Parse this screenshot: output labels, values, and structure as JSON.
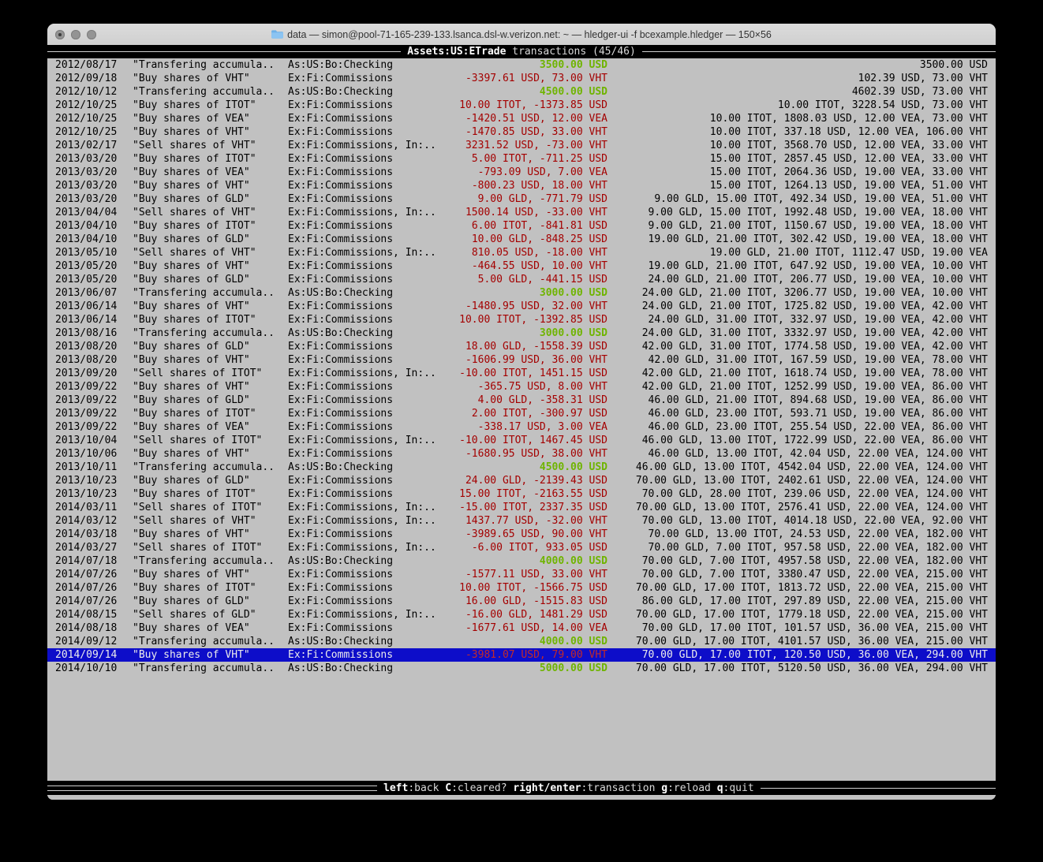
{
  "window": {
    "title": "data — simon@pool-71-165-239-133.lsanca.dsl-w.verizon.net: ~ — hledger-ui -f bcexample.hledger — 150×56",
    "traffic_lights": [
      "close",
      "minimize",
      "zoom"
    ]
  },
  "screen": {
    "title_account": "Assets:US:ETrade",
    "title_mode": "transactions (45/46)"
  },
  "footer": {
    "hints": [
      {
        "key": "left",
        "label": ":back"
      },
      {
        "key": "C",
        "label": ":cleared?"
      },
      {
        "key": "right/enter",
        "label": ":transaction"
      },
      {
        "key": "g",
        "label": ":reload"
      },
      {
        "key": "q",
        "label": ":quit"
      }
    ]
  },
  "colors": {
    "terminal_bg": "#c1c1c1",
    "deposit_green": "#6fb400",
    "trade_red": "#a40000",
    "selection_blue": "#0d0dc9"
  },
  "transactions": [
    {
      "date": "2012/08/17",
      "description": "\"Transfering accumula..",
      "account": "As:US:Bo:Checking",
      "change": "3500.00 USD",
      "change_type": "deposit",
      "balance": "3500.00 USD"
    },
    {
      "date": "2012/09/18",
      "description": "\"Buy shares of VHT\"",
      "account": "Ex:Fi:Commissions",
      "change": "-3397.61 USD, 73.00 VHT",
      "change_type": "trade",
      "balance": "102.39 USD, 73.00 VHT"
    },
    {
      "date": "2012/10/12",
      "description": "\"Transfering accumula..",
      "account": "As:US:Bo:Checking",
      "change": "4500.00 USD",
      "change_type": "deposit",
      "balance": "4602.39 USD, 73.00 VHT"
    },
    {
      "date": "2012/10/25",
      "description": "\"Buy shares of ITOT\"",
      "account": "Ex:Fi:Commissions",
      "change": "10.00 ITOT, -1373.85 USD",
      "change_type": "trade",
      "balance": "10.00 ITOT, 3228.54 USD, 73.00 VHT"
    },
    {
      "date": "2012/10/25",
      "description": "\"Buy shares of VEA\"",
      "account": "Ex:Fi:Commissions",
      "change": "-1420.51 USD, 12.00 VEA",
      "change_type": "trade",
      "balance": "10.00 ITOT, 1808.03 USD, 12.00 VEA, 73.00 VHT"
    },
    {
      "date": "2012/10/25",
      "description": "\"Buy shares of VHT\"",
      "account": "Ex:Fi:Commissions",
      "change": "-1470.85 USD, 33.00 VHT",
      "change_type": "trade",
      "balance": "10.00 ITOT, 337.18 USD, 12.00 VEA, 106.00 VHT"
    },
    {
      "date": "2013/02/17",
      "description": "\"Sell shares of VHT\"",
      "account": "Ex:Fi:Commissions, In:..",
      "change": "3231.52 USD, -73.00 VHT",
      "change_type": "trade",
      "balance": "10.00 ITOT, 3568.70 USD, 12.00 VEA, 33.00 VHT"
    },
    {
      "date": "2013/03/20",
      "description": "\"Buy shares of ITOT\"",
      "account": "Ex:Fi:Commissions",
      "change": "5.00 ITOT, -711.25 USD",
      "change_type": "trade",
      "balance": "15.00 ITOT, 2857.45 USD, 12.00 VEA, 33.00 VHT"
    },
    {
      "date": "2013/03/20",
      "description": "\"Buy shares of VEA\"",
      "account": "Ex:Fi:Commissions",
      "change": "-793.09 USD, 7.00 VEA",
      "change_type": "trade",
      "balance": "15.00 ITOT, 2064.36 USD, 19.00 VEA, 33.00 VHT"
    },
    {
      "date": "2013/03/20",
      "description": "\"Buy shares of VHT\"",
      "account": "Ex:Fi:Commissions",
      "change": "-800.23 USD, 18.00 VHT",
      "change_type": "trade",
      "balance": "15.00 ITOT, 1264.13 USD, 19.00 VEA, 51.00 VHT"
    },
    {
      "date": "2013/03/20",
      "description": "\"Buy shares of GLD\"",
      "account": "Ex:Fi:Commissions",
      "change": "9.00 GLD, -771.79 USD",
      "change_type": "trade",
      "balance": "9.00 GLD, 15.00 ITOT, 492.34 USD, 19.00 VEA, 51.00 VHT"
    },
    {
      "date": "2013/04/04",
      "description": "\"Sell shares of VHT\"",
      "account": "Ex:Fi:Commissions, In:..",
      "change": "1500.14 USD, -33.00 VHT",
      "change_type": "trade",
      "balance": "9.00 GLD, 15.00 ITOT, 1992.48 USD, 19.00 VEA, 18.00 VHT"
    },
    {
      "date": "2013/04/10",
      "description": "\"Buy shares of ITOT\"",
      "account": "Ex:Fi:Commissions",
      "change": "6.00 ITOT, -841.81 USD",
      "change_type": "trade",
      "balance": "9.00 GLD, 21.00 ITOT, 1150.67 USD, 19.00 VEA, 18.00 VHT"
    },
    {
      "date": "2013/04/10",
      "description": "\"Buy shares of GLD\"",
      "account": "Ex:Fi:Commissions",
      "change": "10.00 GLD, -848.25 USD",
      "change_type": "trade",
      "balance": "19.00 GLD, 21.00 ITOT, 302.42 USD, 19.00 VEA, 18.00 VHT"
    },
    {
      "date": "2013/05/10",
      "description": "\"Sell shares of VHT\"",
      "account": "Ex:Fi:Commissions, In:..",
      "change": "810.05 USD, -18.00 VHT",
      "change_type": "trade",
      "balance": "19.00 GLD, 21.00 ITOT, 1112.47 USD, 19.00 VEA"
    },
    {
      "date": "2013/05/20",
      "description": "\"Buy shares of VHT\"",
      "account": "Ex:Fi:Commissions",
      "change": "-464.55 USD, 10.00 VHT",
      "change_type": "trade",
      "balance": "19.00 GLD, 21.00 ITOT, 647.92 USD, 19.00 VEA, 10.00 VHT"
    },
    {
      "date": "2013/05/20",
      "description": "\"Buy shares of GLD\"",
      "account": "Ex:Fi:Commissions",
      "change": "5.00 GLD, -441.15 USD",
      "change_type": "trade",
      "balance": "24.00 GLD, 21.00 ITOT, 206.77 USD, 19.00 VEA, 10.00 VHT"
    },
    {
      "date": "2013/06/07",
      "description": "\"Transfering accumula..",
      "account": "As:US:Bo:Checking",
      "change": "3000.00 USD",
      "change_type": "deposit",
      "balance": "24.00 GLD, 21.00 ITOT, 3206.77 USD, 19.00 VEA, 10.00 VHT"
    },
    {
      "date": "2013/06/14",
      "description": "\"Buy shares of VHT\"",
      "account": "Ex:Fi:Commissions",
      "change": "-1480.95 USD, 32.00 VHT",
      "change_type": "trade",
      "balance": "24.00 GLD, 21.00 ITOT, 1725.82 USD, 19.00 VEA, 42.00 VHT"
    },
    {
      "date": "2013/06/14",
      "description": "\"Buy shares of ITOT\"",
      "account": "Ex:Fi:Commissions",
      "change": "10.00 ITOT, -1392.85 USD",
      "change_type": "trade",
      "balance": "24.00 GLD, 31.00 ITOT, 332.97 USD, 19.00 VEA, 42.00 VHT"
    },
    {
      "date": "2013/08/16",
      "description": "\"Transfering accumula..",
      "account": "As:US:Bo:Checking",
      "change": "3000.00 USD",
      "change_type": "deposit",
      "balance": "24.00 GLD, 31.00 ITOT, 3332.97 USD, 19.00 VEA, 42.00 VHT"
    },
    {
      "date": "2013/08/20",
      "description": "\"Buy shares of GLD\"",
      "account": "Ex:Fi:Commissions",
      "change": "18.00 GLD, -1558.39 USD",
      "change_type": "trade",
      "balance": "42.00 GLD, 31.00 ITOT, 1774.58 USD, 19.00 VEA, 42.00 VHT"
    },
    {
      "date": "2013/08/20",
      "description": "\"Buy shares of VHT\"",
      "account": "Ex:Fi:Commissions",
      "change": "-1606.99 USD, 36.00 VHT",
      "change_type": "trade",
      "balance": "42.00 GLD, 31.00 ITOT, 167.59 USD, 19.00 VEA, 78.00 VHT"
    },
    {
      "date": "2013/09/20",
      "description": "\"Sell shares of ITOT\"",
      "account": "Ex:Fi:Commissions, In:..",
      "change": "-10.00 ITOT, 1451.15 USD",
      "change_type": "trade",
      "balance": "42.00 GLD, 21.00 ITOT, 1618.74 USD, 19.00 VEA, 78.00 VHT"
    },
    {
      "date": "2013/09/22",
      "description": "\"Buy shares of VHT\"",
      "account": "Ex:Fi:Commissions",
      "change": "-365.75 USD, 8.00 VHT",
      "change_type": "trade",
      "balance": "42.00 GLD, 21.00 ITOT, 1252.99 USD, 19.00 VEA, 86.00 VHT"
    },
    {
      "date": "2013/09/22",
      "description": "\"Buy shares of GLD\"",
      "account": "Ex:Fi:Commissions",
      "change": "4.00 GLD, -358.31 USD",
      "change_type": "trade",
      "balance": "46.00 GLD, 21.00 ITOT, 894.68 USD, 19.00 VEA, 86.00 VHT"
    },
    {
      "date": "2013/09/22",
      "description": "\"Buy shares of ITOT\"",
      "account": "Ex:Fi:Commissions",
      "change": "2.00 ITOT, -300.97 USD",
      "change_type": "trade",
      "balance": "46.00 GLD, 23.00 ITOT, 593.71 USD, 19.00 VEA, 86.00 VHT"
    },
    {
      "date": "2013/09/22",
      "description": "\"Buy shares of VEA\"",
      "account": "Ex:Fi:Commissions",
      "change": "-338.17 USD, 3.00 VEA",
      "change_type": "trade",
      "balance": "46.00 GLD, 23.00 ITOT, 255.54 USD, 22.00 VEA, 86.00 VHT"
    },
    {
      "date": "2013/10/04",
      "description": "\"Sell shares of ITOT\"",
      "account": "Ex:Fi:Commissions, In:..",
      "change": "-10.00 ITOT, 1467.45 USD",
      "change_type": "trade",
      "balance": "46.00 GLD, 13.00 ITOT, 1722.99 USD, 22.00 VEA, 86.00 VHT"
    },
    {
      "date": "2013/10/06",
      "description": "\"Buy shares of VHT\"",
      "account": "Ex:Fi:Commissions",
      "change": "-1680.95 USD, 38.00 VHT",
      "change_type": "trade",
      "balance": "46.00 GLD, 13.00 ITOT, 42.04 USD, 22.00 VEA, 124.00 VHT"
    },
    {
      "date": "2013/10/11",
      "description": "\"Transfering accumula..",
      "account": "As:US:Bo:Checking",
      "change": "4500.00 USD",
      "change_type": "deposit",
      "balance": "46.00 GLD, 13.00 ITOT, 4542.04 USD, 22.00 VEA, 124.00 VHT"
    },
    {
      "date": "2013/10/23",
      "description": "\"Buy shares of GLD\"",
      "account": "Ex:Fi:Commissions",
      "change": "24.00 GLD, -2139.43 USD",
      "change_type": "trade",
      "balance": "70.00 GLD, 13.00 ITOT, 2402.61 USD, 22.00 VEA, 124.00 VHT"
    },
    {
      "date": "2013/10/23",
      "description": "\"Buy shares of ITOT\"",
      "account": "Ex:Fi:Commissions",
      "change": "15.00 ITOT, -2163.55 USD",
      "change_type": "trade",
      "balance": "70.00 GLD, 28.00 ITOT, 239.06 USD, 22.00 VEA, 124.00 VHT"
    },
    {
      "date": "2014/03/11",
      "description": "\"Sell shares of ITOT\"",
      "account": "Ex:Fi:Commissions, In:..",
      "change": "-15.00 ITOT, 2337.35 USD",
      "change_type": "trade",
      "balance": "70.00 GLD, 13.00 ITOT, 2576.41 USD, 22.00 VEA, 124.00 VHT"
    },
    {
      "date": "2014/03/12",
      "description": "\"Sell shares of VHT\"",
      "account": "Ex:Fi:Commissions, In:..",
      "change": "1437.77 USD, -32.00 VHT",
      "change_type": "trade",
      "balance": "70.00 GLD, 13.00 ITOT, 4014.18 USD, 22.00 VEA, 92.00 VHT"
    },
    {
      "date": "2014/03/18",
      "description": "\"Buy shares of VHT\"",
      "account": "Ex:Fi:Commissions",
      "change": "-3989.65 USD, 90.00 VHT",
      "change_type": "trade",
      "balance": "70.00 GLD, 13.00 ITOT, 24.53 USD, 22.00 VEA, 182.00 VHT"
    },
    {
      "date": "2014/03/27",
      "description": "\"Sell shares of ITOT\"",
      "account": "Ex:Fi:Commissions, In:..",
      "change": "-6.00 ITOT, 933.05 USD",
      "change_type": "trade",
      "balance": "70.00 GLD, 7.00 ITOT, 957.58 USD, 22.00 VEA, 182.00 VHT"
    },
    {
      "date": "2014/07/18",
      "description": "\"Transfering accumula..",
      "account": "As:US:Bo:Checking",
      "change": "4000.00 USD",
      "change_type": "deposit",
      "balance": "70.00 GLD, 7.00 ITOT, 4957.58 USD, 22.00 VEA, 182.00 VHT"
    },
    {
      "date": "2014/07/26",
      "description": "\"Buy shares of VHT\"",
      "account": "Ex:Fi:Commissions",
      "change": "-1577.11 USD, 33.00 VHT",
      "change_type": "trade",
      "balance": "70.00 GLD, 7.00 ITOT, 3380.47 USD, 22.00 VEA, 215.00 VHT"
    },
    {
      "date": "2014/07/26",
      "description": "\"Buy shares of ITOT\"",
      "account": "Ex:Fi:Commissions",
      "change": "10.00 ITOT, -1566.75 USD",
      "change_type": "trade",
      "balance": "70.00 GLD, 17.00 ITOT, 1813.72 USD, 22.00 VEA, 215.00 VHT"
    },
    {
      "date": "2014/07/26",
      "description": "\"Buy shares of GLD\"",
      "account": "Ex:Fi:Commissions",
      "change": "16.00 GLD, -1515.83 USD",
      "change_type": "trade",
      "balance": "86.00 GLD, 17.00 ITOT, 297.89 USD, 22.00 VEA, 215.00 VHT"
    },
    {
      "date": "2014/08/15",
      "description": "\"Sell shares of GLD\"",
      "account": "Ex:Fi:Commissions, In:..",
      "change": "-16.00 GLD, 1481.29 USD",
      "change_type": "trade",
      "balance": "70.00 GLD, 17.00 ITOT, 1779.18 USD, 22.00 VEA, 215.00 VHT"
    },
    {
      "date": "2014/08/18",
      "description": "\"Buy shares of VEA\"",
      "account": "Ex:Fi:Commissions",
      "change": "-1677.61 USD, 14.00 VEA",
      "change_type": "trade",
      "balance": "70.00 GLD, 17.00 ITOT, 101.57 USD, 36.00 VEA, 215.00 VHT"
    },
    {
      "date": "2014/09/12",
      "description": "\"Transfering accumula..",
      "account": "As:US:Bo:Checking",
      "change": "4000.00 USD",
      "change_type": "deposit",
      "balance": "70.00 GLD, 17.00 ITOT, 4101.57 USD, 36.00 VEA, 215.00 VHT"
    },
    {
      "date": "2014/09/14",
      "description": "\"Buy shares of VHT\"",
      "account": "Ex:Fi:Commissions",
      "change": "-3981.07 USD, 79.00 VHT",
      "change_type": "trade",
      "balance": "70.00 GLD, 17.00 ITOT, 120.50 USD, 36.00 VEA, 294.00 VHT",
      "selected": true
    },
    {
      "date": "2014/10/10",
      "description": "\"Transfering accumula..",
      "account": "As:US:Bo:Checking",
      "change": "5000.00 USD",
      "change_type": "deposit",
      "balance": "70.00 GLD, 17.00 ITOT, 5120.50 USD, 36.00 VEA, 294.00 VHT"
    }
  ]
}
